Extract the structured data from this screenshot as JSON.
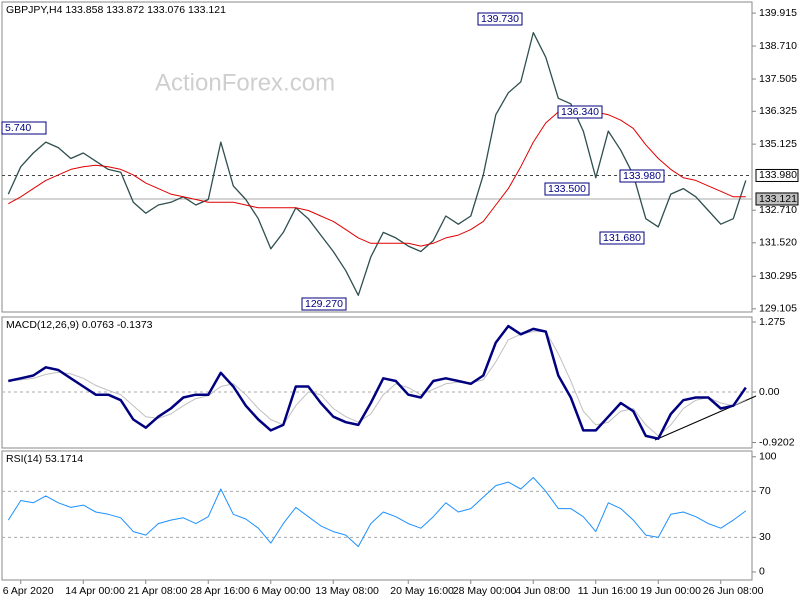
{
  "chart_data": [
    {
      "type": "line",
      "title": "GBPJPY,H4  133.858 133.872 133.076 133.121",
      "watermark": "ActionForex.com",
      "ylim": [
        128.99,
        140.32
      ],
      "yticks": [
        139.915,
        {
          "value": 138.71,
          "label": "138.710"
        },
        137.505,
        136.325,
        135.125,
        {
          "value": 132.71,
          "label": "132.710"
        },
        {
          "value": 131.52,
          "label": "131.520"
        },
        130.295,
        129.105
      ],
      "price_lines": [
        {
          "value": 133.98,
          "label": "133.980",
          "style": "dashed"
        },
        {
          "value": 133.121,
          "label": "133.121",
          "style": "solid"
        }
      ],
      "annotations": [
        "5.740",
        "139.730",
        "136.340",
        "133.500",
        "133.980",
        "131.680",
        "129.270"
      ],
      "series": [
        {
          "color": "#2f4f4f",
          "width": 1.3,
          "values": [
            133.3,
            134.3,
            134.8,
            135.2,
            135.0,
            134.6,
            134.8,
            134.5,
            134.2,
            134.1,
            133.0,
            132.6,
            132.9,
            133.0,
            133.2,
            132.9,
            133.1,
            135.2,
            133.6,
            133.1,
            132.4,
            131.3,
            131.9,
            132.8,
            132.4,
            131.8,
            131.2,
            130.5,
            129.6,
            131.0,
            131.9,
            131.7,
            131.4,
            131.2,
            131.6,
            132.5,
            132.2,
            132.5,
            134.0,
            136.2,
            137.0,
            137.4,
            139.2,
            138.3,
            136.8,
            136.6,
            135.6,
            133.9,
            135.6,
            134.9,
            134.0,
            132.4,
            132.1,
            133.3,
            133.5,
            133.2,
            132.7,
            132.2,
            132.4,
            133.8
          ]
        },
        {
          "color": "#e00000",
          "width": 1,
          "values": [
            132.95,
            133.2,
            133.5,
            133.8,
            134.0,
            134.2,
            134.3,
            134.35,
            134.3,
            134.2,
            134.0,
            133.7,
            133.5,
            133.3,
            133.2,
            133.1,
            133.0,
            133.0,
            133.0,
            132.9,
            132.8,
            132.8,
            132.8,
            132.8,
            132.7,
            132.5,
            132.3,
            132.0,
            131.7,
            131.5,
            131.5,
            131.5,
            131.5,
            131.4,
            131.5,
            131.7,
            131.8,
            132.0,
            132.3,
            132.9,
            133.5,
            134.3,
            135.2,
            135.9,
            136.3,
            136.5,
            136.5,
            136.3,
            136.2,
            136.0,
            135.7,
            135.1,
            134.6,
            134.2,
            133.9,
            133.8,
            133.6,
            133.4,
            133.2,
            133.2
          ]
        }
      ]
    },
    {
      "type": "line",
      "title": "MACD(12,26,9) 0.0763 -0.1373",
      "ylim": [
        -1.02,
        1.366
      ],
      "yticks": [
        1.275,
        {
          "value": 0,
          "label": "0.00"
        },
        -0.9202
      ],
      "levels": [
        0
      ],
      "series": [
        {
          "color": "#c0c0c0",
          "width": 1,
          "values": [
            0.2,
            0.22,
            0.25,
            0.32,
            0.36,
            0.33,
            0.25,
            0.12,
            0.03,
            -0.05,
            -0.25,
            -0.45,
            -0.48,
            -0.4,
            -0.25,
            -0.12,
            -0.07,
            0.1,
            0.15,
            -0.05,
            -0.3,
            -0.5,
            -0.6,
            -0.25,
            0.0,
            -0.05,
            -0.3,
            -0.45,
            -0.55,
            -0.4,
            -0.05,
            0.15,
            0.08,
            -0.05,
            0.05,
            0.15,
            0.18,
            0.17,
            0.22,
            0.55,
            0.95,
            1.05,
            1.1,
            1.1,
            0.7,
            0.2,
            -0.35,
            -0.6,
            -0.55,
            -0.35,
            -0.3,
            -0.6,
            -0.8,
            -0.6,
            -0.3,
            -0.15,
            -0.1,
            -0.2,
            -0.25,
            -0.14
          ]
        },
        {
          "color": "#000080",
          "width": 2.5,
          "values": [
            0.2,
            0.25,
            0.3,
            0.45,
            0.4,
            0.25,
            0.1,
            -0.05,
            -0.05,
            -0.15,
            -0.5,
            -0.65,
            -0.45,
            -0.3,
            -0.1,
            -0.05,
            -0.05,
            0.35,
            0.1,
            -0.25,
            -0.5,
            -0.7,
            -0.6,
            0.1,
            0.1,
            -0.2,
            -0.45,
            -0.55,
            -0.6,
            -0.2,
            0.25,
            0.2,
            -0.05,
            -0.1,
            0.2,
            0.25,
            0.2,
            0.15,
            0.3,
            0.9,
            1.2,
            1.05,
            1.15,
            1.1,
            0.3,
            -0.1,
            -0.7,
            -0.7,
            -0.45,
            -0.2,
            -0.35,
            -0.8,
            -0.85,
            -0.4,
            -0.15,
            -0.1,
            -0.1,
            -0.3,
            -0.25,
            0.08
          ]
        }
      ]
    },
    {
      "type": "line",
      "title": "RSI(14) 53.1714",
      "ylim": [
        -7,
        105
      ],
      "yticks": [
        100,
        70,
        30,
        0
      ],
      "levels": [
        30,
        70
      ],
      "categories": [
        null,
        "6 Apr 2020",
        null,
        null,
        null,
        null,
        "14 Apr 00:00",
        null,
        null,
        null,
        null,
        "21 Apr 08:00",
        null,
        null,
        null,
        null,
        "28 Apr 16:00",
        null,
        null,
        null,
        null,
        "6 May 00:00",
        null,
        null,
        null,
        null,
        "13 May 08:00",
        null,
        null,
        null,
        null,
        null,
        "20 May 16:00",
        null,
        null,
        null,
        null,
        "28 May 00:00",
        null,
        null,
        null,
        null,
        "4 Jun 08:00",
        null,
        null,
        null,
        null,
        "11 Jun 16:00",
        null,
        null,
        null,
        null,
        "19 Jun 00:00",
        null,
        null,
        null,
        null,
        "26 Jun 08:00",
        null,
        null
      ],
      "series": [
        {
          "color": "#1e90ff",
          "width": 1,
          "values": [
            45,
            62,
            60,
            66,
            60,
            56,
            58,
            52,
            50,
            47,
            35,
            32,
            42,
            45,
            47,
            42,
            48,
            72,
            50,
            46,
            38,
            25,
            42,
            56,
            48,
            40,
            35,
            32,
            22,
            42,
            52,
            48,
            42,
            38,
            48,
            60,
            52,
            55,
            65,
            75,
            78,
            72,
            82,
            70,
            55,
            55,
            48,
            35,
            60,
            55,
            45,
            32,
            30,
            50,
            52,
            48,
            42,
            38,
            45,
            53
          ]
        }
      ]
    }
  ]
}
